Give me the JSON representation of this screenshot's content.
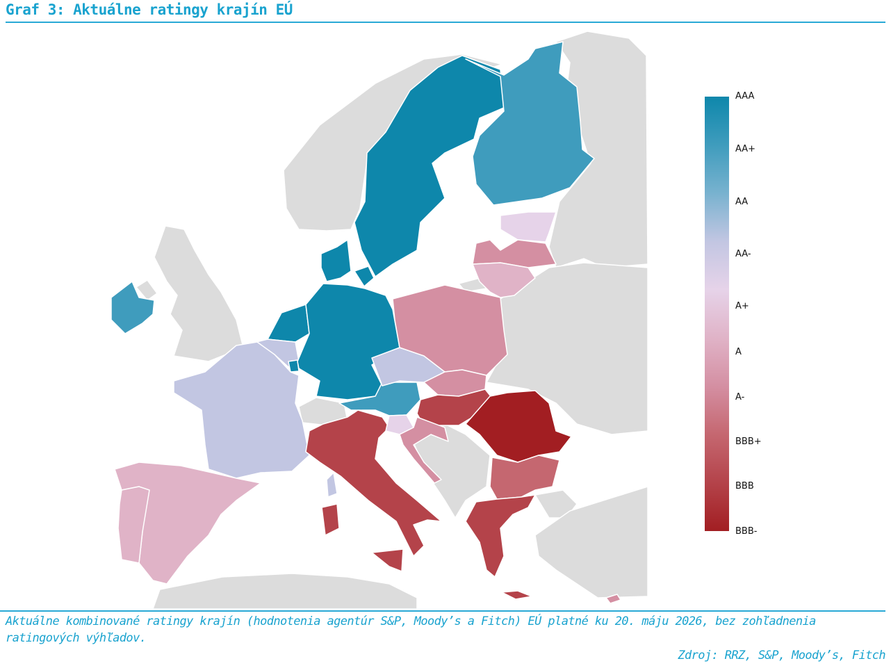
{
  "title": "Graf 3: Aktuálne ratingy krajín EÚ",
  "caption": "Aktuálne kombinované ratingy krajín (hodnotenia agentúr S&P, Moody’s a Fitch) EÚ platné ku 20. máju 2026, bez zohľadnenia ratingových výhľadov.",
  "source": "Zdroj: RRZ, S&P, Moody’s, Fitch",
  "legend": {
    "labels": [
      "AAA",
      "AA+",
      "AA",
      "AA-",
      "A+",
      "A",
      "A-",
      "BBB+",
      "BBB",
      "BBB-"
    ],
    "colors": [
      "#0e87ab",
      "#3f9cbd",
      "#78b2cf",
      "#c2c6e2",
      "#e6d3e9",
      "#e0b3c7",
      "#d48fa2",
      "#c56770",
      "#b4434a",
      "#a21e22"
    ]
  },
  "colors": {
    "non_eu": "#dcdcdc",
    "border": "#ffffff",
    "accent": "#1aa3cf"
  },
  "countries": [
    {
      "name": "Sweden",
      "rating": "AAA"
    },
    {
      "name": "Finland",
      "rating": "AA+"
    },
    {
      "name": "Denmark",
      "rating": "AAA"
    },
    {
      "name": "Netherlands",
      "rating": "AAA"
    },
    {
      "name": "Germany",
      "rating": "AAA"
    },
    {
      "name": "Luxembourg",
      "rating": "AAA"
    },
    {
      "name": "Ireland",
      "rating": "AA+"
    },
    {
      "name": "Austria",
      "rating": "AA+"
    },
    {
      "name": "Belgium",
      "rating": "AA-"
    },
    {
      "name": "France",
      "rating": "AA-"
    },
    {
      "name": "Czechia",
      "rating": "AA-"
    },
    {
      "name": "Estonia",
      "rating": "A+"
    },
    {
      "name": "Slovenia",
      "rating": "A+"
    },
    {
      "name": "Latvia",
      "rating": "A-"
    },
    {
      "name": "Lithuania",
      "rating": "A"
    },
    {
      "name": "Spain",
      "rating": "A"
    },
    {
      "name": "Portugal",
      "rating": "A"
    },
    {
      "name": "Poland",
      "rating": "A-"
    },
    {
      "name": "Slovakia",
      "rating": "A-"
    },
    {
      "name": "Croatia",
      "rating": "A-"
    },
    {
      "name": "Cyprus",
      "rating": "A-"
    },
    {
      "name": "Bulgaria",
      "rating": "BBB+"
    },
    {
      "name": "Italy",
      "rating": "BBB"
    },
    {
      "name": "Greece",
      "rating": "BBB"
    },
    {
      "name": "Hungary",
      "rating": "BBB"
    },
    {
      "name": "Romania",
      "rating": "BBB-"
    }
  ]
}
